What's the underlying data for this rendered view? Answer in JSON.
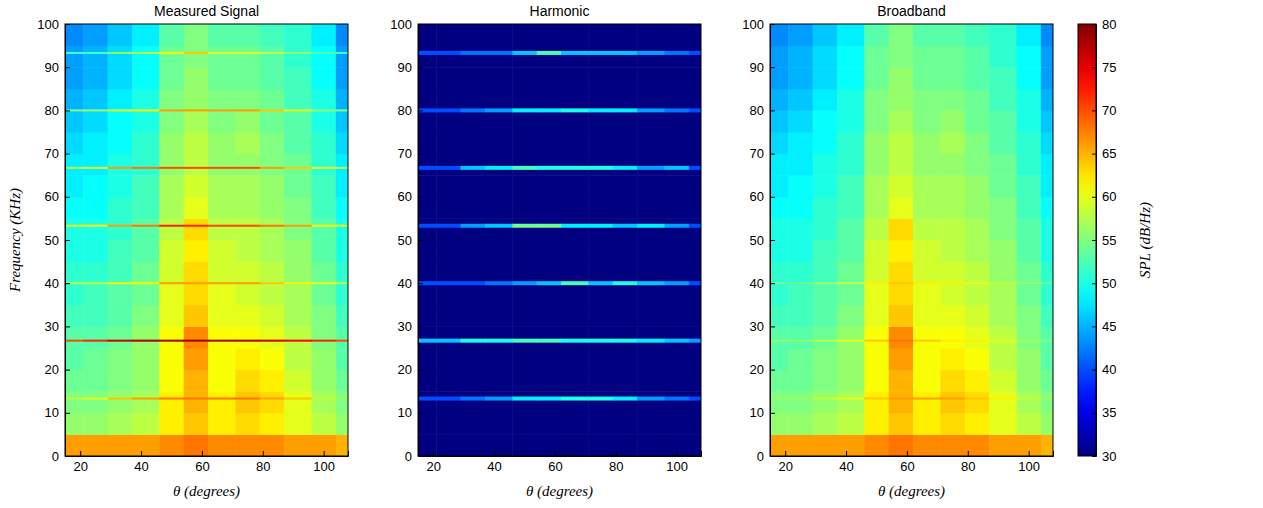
{
  "chart_data": {
    "type": "heatmap",
    "xlabel": "θ (degrees)",
    "ylabel": "Frequency (KHz)",
    "xlim": [
      15,
      108
    ],
    "ylim": [
      0,
      100
    ],
    "xticks": [
      20,
      40,
      60,
      80,
      100
    ],
    "yticks": [
      0,
      10,
      20,
      30,
      40,
      50,
      60,
      70,
      80,
      90,
      100
    ],
    "x_edges": [
      15,
      21,
      29,
      37,
      46,
      54,
      62,
      71,
      79,
      87,
      96,
      104,
      108
    ],
    "y_edges": [
      0,
      5,
      10,
      15,
      20,
      25,
      30,
      35,
      40,
      45,
      50,
      55,
      60,
      65,
      70,
      75,
      80,
      85,
      90,
      95,
      100
    ],
    "colorbar": {
      "label": "SPL (dB/Hz)",
      "range": [
        30,
        80
      ],
      "ticks": [
        30,
        35,
        40,
        45,
        50,
        55,
        60,
        65,
        70,
        75,
        80
      ]
    },
    "panels": [
      {
        "title": "Measured Signal",
        "cells": [
          [
            66,
            66,
            66,
            66,
            67,
            68,
            67,
            67,
            67,
            66,
            66,
            65
          ],
          [
            56,
            56,
            57,
            58,
            62,
            64,
            62,
            63,
            62,
            60,
            58,
            56
          ],
          [
            55,
            55,
            56,
            57,
            62,
            65,
            62,
            64,
            63,
            60,
            57,
            55
          ],
          [
            54,
            54,
            55,
            56,
            61,
            65,
            61,
            63,
            62,
            59,
            56,
            54
          ],
          [
            53,
            54,
            55,
            56,
            61,
            66,
            61,
            62,
            61,
            58,
            56,
            53
          ],
          [
            53,
            53,
            54,
            56,
            61,
            67,
            61,
            61,
            60,
            58,
            55,
            53
          ],
          [
            52,
            52,
            53,
            55,
            60,
            64,
            60,
            60,
            59,
            57,
            55,
            52
          ],
          [
            51,
            52,
            53,
            54,
            60,
            63,
            60,
            59,
            58,
            57,
            54,
            51
          ],
          [
            51,
            51,
            52,
            54,
            59,
            63,
            59,
            59,
            58,
            56,
            54,
            51
          ],
          [
            50,
            50,
            52,
            53,
            59,
            62,
            59,
            58,
            57,
            56,
            53,
            50
          ],
          [
            50,
            50,
            51,
            53,
            58,
            63,
            58,
            58,
            57,
            55,
            53,
            50
          ],
          [
            49,
            49,
            51,
            52,
            57,
            60,
            57,
            57,
            56,
            55,
            52,
            49
          ],
          [
            48,
            49,
            50,
            52,
            57,
            59,
            57,
            57,
            56,
            54,
            52,
            48
          ],
          [
            48,
            48,
            50,
            51,
            56,
            58,
            56,
            56,
            55,
            54,
            51,
            48
          ],
          [
            47,
            48,
            49,
            51,
            56,
            58,
            56,
            57,
            55,
            53,
            51,
            47
          ],
          [
            46,
            47,
            49,
            50,
            55,
            57,
            55,
            56,
            54,
            53,
            50,
            46
          ],
          [
            45,
            46,
            48,
            50,
            55,
            56,
            55,
            55,
            54,
            52,
            50,
            45
          ],
          [
            44,
            45,
            47,
            49,
            54,
            56,
            54,
            54,
            53,
            52,
            49,
            44
          ],
          [
            44,
            45,
            47,
            49,
            54,
            55,
            54,
            54,
            53,
            51,
            49,
            44
          ],
          [
            43,
            44,
            46,
            48,
            53,
            55,
            53,
            53,
            52,
            51,
            48,
            43
          ]
        ],
        "tones": {
          "frequencies": [
            13.3,
            26.7,
            40,
            53.3,
            66.7,
            80,
            93.3
          ],
          "levels": [
            [
              58,
              60,
              64,
              66,
              68,
              68,
              68,
              68,
              66,
              64,
              58,
              56
            ],
            [
              70,
              72,
              76,
              78,
              78,
              78,
              78,
              78,
              76,
              74,
              72,
              70
            ],
            [
              58,
              58,
              62,
              62,
              66,
              66,
              66,
              66,
              64,
              62,
              60,
              58
            ],
            [
              60,
              62,
              66,
              68,
              72,
              72,
              70,
              70,
              68,
              66,
              62,
              60
            ],
            [
              58,
              60,
              66,
              68,
              70,
              70,
              70,
              70,
              66,
              64,
              60,
              58
            ],
            [
              55,
              56,
              60,
              62,
              66,
              66,
              66,
              66,
              64,
              60,
              56,
              55
            ],
            [
              52,
              52,
              56,
              58,
              62,
              64,
              60,
              60,
              58,
              56,
              52,
              52
            ]
          ]
        }
      },
      {
        "title": "Harmonic",
        "cells": [
          [
            30,
            30,
            30,
            30,
            30,
            30,
            30,
            30,
            30,
            30,
            30,
            30
          ],
          [
            30,
            30,
            30,
            30,
            30,
            30,
            30,
            30,
            30,
            30,
            30,
            30
          ],
          [
            30,
            30,
            30,
            30,
            30,
            30,
            30,
            30,
            30,
            30,
            30,
            30
          ],
          [
            30,
            30,
            30,
            30,
            30,
            30,
            30,
            30,
            30,
            30,
            30,
            30
          ],
          [
            30,
            30,
            30,
            30,
            30,
            30,
            30,
            30,
            30,
            30,
            30,
            30
          ],
          [
            30,
            30,
            30,
            30,
            30,
            30,
            30,
            30,
            30,
            30,
            30,
            30
          ],
          [
            30,
            30,
            30,
            30,
            30,
            30,
            30,
            30,
            30,
            30,
            30,
            30
          ],
          [
            30,
            30,
            30,
            30,
            30,
            30,
            30,
            30,
            30,
            30,
            30,
            30
          ],
          [
            30,
            30,
            30,
            30,
            30,
            30,
            30,
            30,
            30,
            30,
            30,
            30
          ],
          [
            30,
            30,
            30,
            30,
            30,
            30,
            30,
            30,
            30,
            30,
            30,
            30
          ],
          [
            30,
            30,
            30,
            30,
            30,
            30,
            30,
            30,
            30,
            30,
            30,
            30
          ],
          [
            30,
            30,
            30,
            30,
            30,
            30,
            30,
            30,
            30,
            30,
            30,
            30
          ],
          [
            30,
            30,
            30,
            30,
            30,
            30,
            30,
            30,
            30,
            30,
            30,
            30
          ],
          [
            30,
            30,
            30,
            30,
            30,
            30,
            30,
            30,
            30,
            30,
            30,
            30
          ],
          [
            30,
            30,
            30,
            30,
            30,
            30,
            30,
            30,
            30,
            30,
            30,
            30
          ],
          [
            30,
            30,
            30,
            30,
            30,
            30,
            30,
            30,
            30,
            30,
            30,
            30
          ],
          [
            30,
            30,
            30,
            30,
            30,
            30,
            30,
            30,
            30,
            30,
            30,
            30
          ],
          [
            30,
            30,
            30,
            30,
            30,
            30,
            30,
            30,
            30,
            30,
            30,
            30
          ],
          [
            30,
            30,
            30,
            30,
            30,
            30,
            30,
            30,
            30,
            30,
            30,
            30
          ],
          [
            30,
            30,
            30,
            30,
            30,
            30,
            30,
            30,
            30,
            30,
            30,
            30
          ]
        ],
        "tones": {
          "frequencies": [
            13.3,
            26.7,
            40,
            53.3,
            66.7,
            80,
            93.3
          ],
          "levels": [
            [
              40,
              40,
              42,
              44,
              48,
              48,
              50,
              50,
              48,
              44,
              42,
              40
            ],
            [
              46,
              46,
              50,
              50,
              52,
              52,
              50,
              50,
              50,
              48,
              46,
              44
            ],
            [
              40,
              40,
              40,
              42,
              44,
              46,
              52,
              46,
              50,
              46,
              44,
              40
            ],
            [
              40,
              40,
              44,
              46,
              54,
              54,
              48,
              48,
              46,
              48,
              44,
              40
            ],
            [
              40,
              40,
              46,
              48,
              52,
              50,
              50,
              50,
              48,
              44,
              46,
              40
            ],
            [
              40,
              40,
              42,
              44,
              48,
              48,
              50,
              48,
              48,
              44,
              42,
              40
            ],
            [
              40,
              40,
              42,
              42,
              46,
              52,
              46,
              46,
              46,
              44,
              42,
              40
            ]
          ]
        }
      },
      {
        "title": "Broadband",
        "cells": [
          [
            66,
            66,
            66,
            66,
            67,
            68,
            67,
            67,
            67,
            66,
            66,
            65
          ],
          [
            56,
            56,
            57,
            58,
            62,
            64,
            62,
            63,
            62,
            60,
            58,
            56
          ],
          [
            55,
            55,
            56,
            57,
            62,
            65,
            62,
            64,
            63,
            60,
            57,
            55
          ],
          [
            54,
            54,
            55,
            56,
            61,
            65,
            61,
            63,
            62,
            59,
            56,
            54
          ],
          [
            53,
            54,
            55,
            56,
            61,
            66,
            61,
            62,
            61,
            58,
            56,
            53
          ],
          [
            53,
            53,
            54,
            56,
            61,
            67,
            61,
            61,
            60,
            58,
            55,
            53
          ],
          [
            52,
            52,
            53,
            55,
            60,
            64,
            60,
            60,
            59,
            57,
            55,
            52
          ],
          [
            51,
            52,
            53,
            54,
            60,
            63,
            60,
            59,
            58,
            57,
            54,
            51
          ],
          [
            51,
            51,
            52,
            54,
            59,
            63,
            59,
            59,
            58,
            56,
            54,
            51
          ],
          [
            50,
            50,
            52,
            53,
            59,
            62,
            59,
            58,
            57,
            56,
            53,
            50
          ],
          [
            50,
            50,
            51,
            53,
            58,
            63,
            58,
            58,
            57,
            55,
            53,
            50
          ],
          [
            49,
            49,
            51,
            52,
            57,
            60,
            57,
            57,
            56,
            55,
            52,
            49
          ],
          [
            48,
            49,
            50,
            52,
            57,
            59,
            57,
            57,
            56,
            54,
            52,
            48
          ],
          [
            48,
            48,
            50,
            51,
            56,
            58,
            56,
            56,
            55,
            54,
            51,
            48
          ],
          [
            47,
            48,
            49,
            51,
            56,
            58,
            56,
            57,
            55,
            53,
            51,
            47
          ],
          [
            46,
            47,
            49,
            50,
            55,
            57,
            55,
            56,
            54,
            53,
            50,
            46
          ],
          [
            45,
            46,
            48,
            50,
            55,
            56,
            55,
            55,
            54,
            52,
            50,
            45
          ],
          [
            44,
            45,
            47,
            49,
            54,
            56,
            54,
            54,
            53,
            52,
            49,
            44
          ],
          [
            44,
            45,
            47,
            49,
            54,
            55,
            54,
            54,
            53,
            51,
            49,
            44
          ],
          [
            43,
            44,
            46,
            48,
            53,
            55,
            53,
            53,
            52,
            51,
            48,
            43
          ]
        ],
        "tones": {
          "frequencies": [
            13.3,
            26.7,
            40
          ],
          "levels": [
            [
              56,
              56,
              58,
              60,
              64,
              66,
              66,
              66,
              64,
              62,
              58,
              56
            ],
            [
              56,
              56,
              58,
              60,
              64,
              68,
              64,
              62,
              62,
              60,
              57,
              55
            ],
            [
              54,
              54,
              56,
              58,
              62,
              64,
              62,
              62,
              60,
              58,
              56,
              54
            ]
          ]
        }
      }
    ]
  }
}
